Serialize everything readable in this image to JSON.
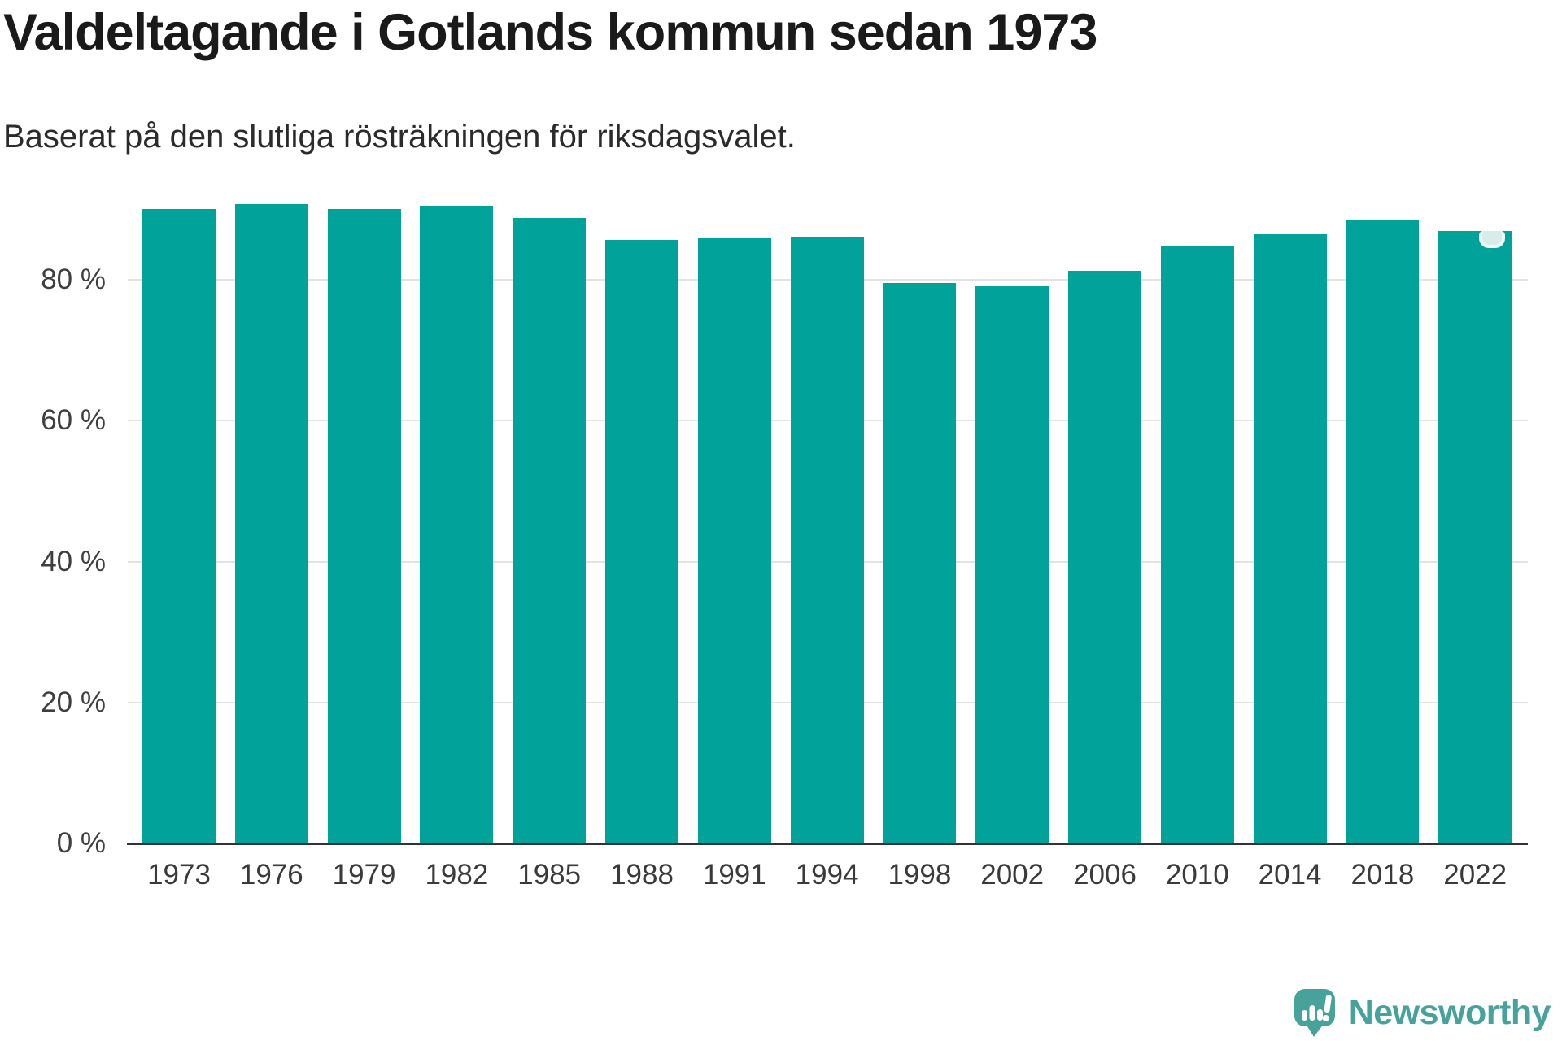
{
  "header": {
    "title": "Valdeltagande i Gotlands kommun sedan 1973",
    "subtitle": "Baserat på den slutliga rösträkningen för riksdagsvalet."
  },
  "chart_data": {
    "type": "bar",
    "title": "Valdeltagande i Gotlands kommun sedan 1973",
    "subtitle": "Baserat på den slutliga rösträkningen för riksdagsvalet.",
    "xlabel": "",
    "ylabel": "",
    "unit": "%",
    "categories": [
      "1973",
      "1976",
      "1979",
      "1982",
      "1985",
      "1988",
      "1991",
      "1994",
      "1998",
      "2002",
      "2006",
      "2010",
      "2014",
      "2018",
      "2022"
    ],
    "values": [
      90.1,
      90.7,
      90.0,
      90.5,
      88.8,
      85.7,
      85.9,
      86.1,
      79.6,
      79.1,
      81.3,
      84.7,
      86.5,
      88.6,
      86.9
    ],
    "ylim": [
      0,
      96
    ],
    "yticks": [
      0,
      20,
      40,
      60,
      80
    ],
    "ytick_labels": [
      "0 %",
      "20 %",
      "40 %",
      "60 %",
      "80 %"
    ],
    "grid": true,
    "legend": false,
    "highlight": {
      "category": "2022",
      "index": 14
    }
  },
  "colors": {
    "bar": "#00a29a",
    "brand": "#46a29b",
    "grid": "#e3e3e3",
    "axis": "#333333",
    "highlight_fill": "#d8ece9",
    "highlight_border": "#f1f9f8"
  },
  "footer": {
    "brand": "Newsworthy"
  }
}
